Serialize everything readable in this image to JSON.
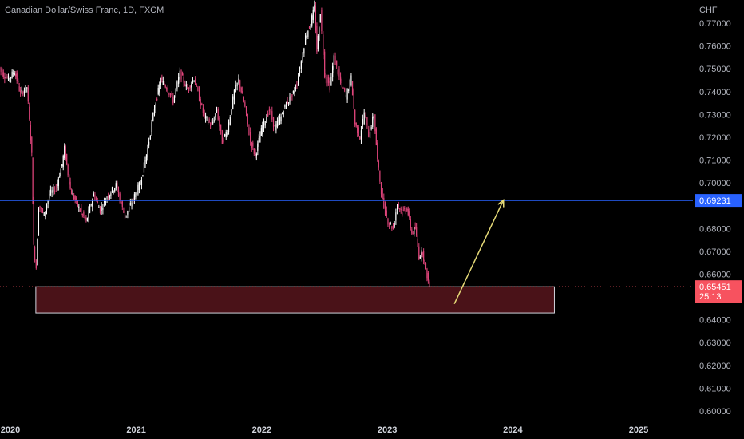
{
  "header": {
    "symbol_title": "Canadian Dollar/Swiss Franc, 1D, FXCM"
  },
  "colors": {
    "background": "#000000",
    "candle_up": "#ffffff",
    "candle_down": "#e0457b",
    "hline": "#2962ff",
    "price_tag_last": "#f7525f",
    "zone_fill": "#4a1218",
    "zone_border": "#d1d4dc",
    "arrow": "#e5d977"
  },
  "chart_data": {
    "type": "line",
    "title": "Canadian Dollar/Swiss Franc, 1D, FXCM",
    "ylabel": "CHF",
    "xlabel": "",
    "y_axis_ticks": [
      "0.77000",
      "0.76000",
      "0.75000",
      "0.74000",
      "0.73000",
      "0.72000",
      "0.71000",
      "0.70000",
      "0.68000",
      "0.67000",
      "0.66000",
      "0.64000",
      "0.63000",
      "0.62000",
      "0.61000",
      "0.60000"
    ],
    "x_axis_ticks": [
      "2020",
      "2021",
      "2022",
      "2023",
      "2024",
      "2025"
    ],
    "ylim": [
      0.6,
      0.777
    ],
    "grid": false,
    "series": [
      {
        "values": [
          [
            "2019-11-25",
            0.752
          ],
          [
            "2019-12-10",
            0.748
          ],
          [
            "2019-12-28",
            0.7455
          ],
          [
            "2020-01-15",
            0.749
          ],
          [
            "2020-02-01",
            0.739
          ],
          [
            "2020-02-20",
            0.742
          ],
          [
            "2020-03-05",
            0.712
          ],
          [
            "2020-03-10",
            0.672
          ],
          [
            "2020-03-18",
            0.663
          ],
          [
            "2020-03-25",
            0.69
          ],
          [
            "2020-04-10",
            0.686
          ],
          [
            "2020-04-25",
            0.695
          ],
          [
            "2020-05-15",
            0.698
          ],
          [
            "2020-06-01",
            0.708
          ],
          [
            "2020-06-08",
            0.715
          ],
          [
            "2020-06-25",
            0.697
          ],
          [
            "2020-07-20",
            0.689
          ],
          [
            "2020-08-10",
            0.683
          ],
          [
            "2020-09-01",
            0.695
          ],
          [
            "2020-09-20",
            0.688
          ],
          [
            "2020-10-10",
            0.694
          ],
          [
            "2020-11-05",
            0.699
          ],
          [
            "2020-12-01",
            0.685
          ],
          [
            "2020-12-25",
            0.693
          ],
          [
            "2021-01-15",
            0.7
          ],
          [
            "2021-02-05",
            0.715
          ],
          [
            "2021-02-25",
            0.733
          ],
          [
            "2021-03-15",
            0.745
          ],
          [
            "2021-04-01",
            0.742
          ],
          [
            "2021-04-20",
            0.736
          ],
          [
            "2021-05-10",
            0.748
          ],
          [
            "2021-06-01",
            0.741
          ],
          [
            "2021-06-20",
            0.746
          ],
          [
            "2021-07-05",
            0.737
          ],
          [
            "2021-07-20",
            0.729
          ],
          [
            "2021-08-10",
            0.725
          ],
          [
            "2021-08-25",
            0.732
          ],
          [
            "2021-09-10",
            0.718
          ],
          [
            "2021-09-25",
            0.723
          ],
          [
            "2021-10-15",
            0.74
          ],
          [
            "2021-10-28",
            0.745
          ],
          [
            "2021-11-15",
            0.733
          ],
          [
            "2021-12-01",
            0.718
          ],
          [
            "2021-12-15",
            0.712
          ],
          [
            "2022-01-05",
            0.725
          ],
          [
            "2022-01-25",
            0.732
          ],
          [
            "2022-02-10",
            0.724
          ],
          [
            "2022-02-28",
            0.729
          ],
          [
            "2022-03-15",
            0.735
          ],
          [
            "2022-04-01",
            0.738
          ],
          [
            "2022-04-15",
            0.744
          ],
          [
            "2022-04-28",
            0.753
          ],
          [
            "2022-05-10",
            0.764
          ],
          [
            "2022-05-25",
            0.77
          ],
          [
            "2022-06-05",
            0.777
          ],
          [
            "2022-06-12",
            0.758
          ],
          [
            "2022-06-22",
            0.775
          ],
          [
            "2022-07-05",
            0.748
          ],
          [
            "2022-07-20",
            0.742
          ],
          [
            "2022-08-01",
            0.755
          ],
          [
            "2022-08-20",
            0.744
          ],
          [
            "2022-09-05",
            0.738
          ],
          [
            "2022-09-20",
            0.746
          ],
          [
            "2022-10-01",
            0.726
          ],
          [
            "2022-10-15",
            0.72
          ],
          [
            "2022-10-28",
            0.731
          ],
          [
            "2022-11-10",
            0.721
          ],
          [
            "2022-11-25",
            0.73
          ],
          [
            "2022-12-05",
            0.71
          ],
          [
            "2022-12-20",
            0.692
          ],
          [
            "2023-01-05",
            0.683
          ],
          [
            "2023-01-20",
            0.68
          ],
          [
            "2023-02-01",
            0.691
          ],
          [
            "2023-02-15",
            0.687
          ],
          [
            "2023-03-01",
            0.689
          ],
          [
            "2023-03-15",
            0.678
          ],
          [
            "2023-03-25",
            0.68
          ],
          [
            "2023-04-05",
            0.668
          ],
          [
            "2023-04-15",
            0.67
          ],
          [
            "2023-04-25",
            0.662
          ],
          [
            "2023-05-05",
            0.6545
          ]
        ]
      }
    ],
    "horizontal_line": {
      "price": 0.69231,
      "label": "0.69231"
    },
    "last_price": {
      "label": "0.65451",
      "countdown": "25:13"
    },
    "demand_zone": {
      "x_start": "2020-03-15",
      "x_end": "2024-05-01",
      "y_top": 0.6545,
      "y_bottom": 0.643
    },
    "arrow": {
      "from": [
        "2023-07-15",
        0.647
      ],
      "to": [
        "2023-12-05",
        0.6925
      ]
    }
  }
}
